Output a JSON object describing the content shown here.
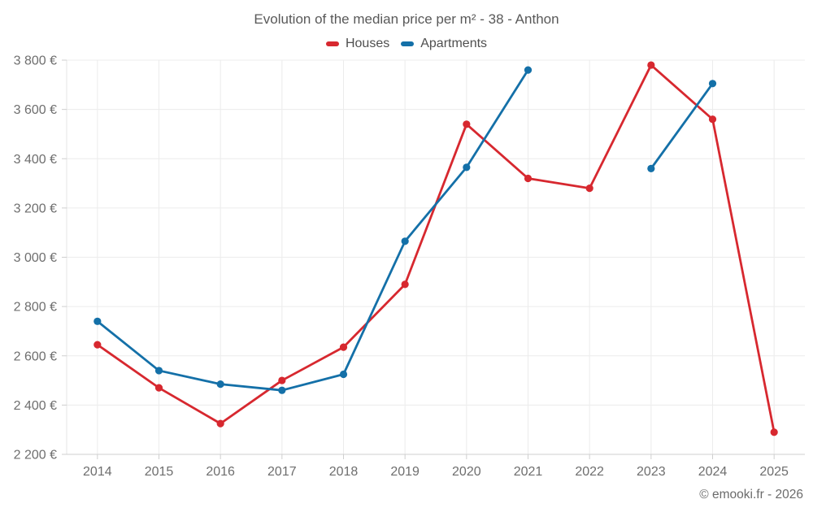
{
  "footer": {
    "copyright": "© emooki.fr - 2026"
  },
  "chart_data": {
    "type": "line",
    "title": "Evolution of the median price per m² - 38 - Anthon",
    "x": [
      2014,
      2015,
      2016,
      2017,
      2018,
      2019,
      2020,
      2021,
      2022,
      2023,
      2024,
      2025
    ],
    "xlabel": "",
    "ylabel": "",
    "ylim": [
      2200,
      3800
    ],
    "y_tick_step": 200,
    "y_tick_labels": [
      "2 200 €",
      "2 400 €",
      "2 600 €",
      "2 800 €",
      "3 000 €",
      "3 200 €",
      "3 400 €",
      "3 600 €",
      "3 800 €"
    ],
    "grid": true,
    "legend_position": "top",
    "series": [
      {
        "name": "Houses",
        "color": "#d7282f",
        "values": [
          2645,
          2470,
          2325,
          2500,
          2635,
          2890,
          3540,
          3320,
          3280,
          3780,
          3560,
          2290
        ]
      },
      {
        "name": "Apartments",
        "color": "#1470a8",
        "values": [
          2740,
          2540,
          2485,
          2460,
          2525,
          3065,
          3365,
          3760,
          null,
          3360,
          3705,
          null
        ]
      }
    ],
    "colors": {
      "gridline": "#ececec",
      "axis": "#cfcfcf",
      "plot_border": "#e4e4e4",
      "label_text": "#6e6e6e",
      "title_text": "#595959"
    }
  }
}
